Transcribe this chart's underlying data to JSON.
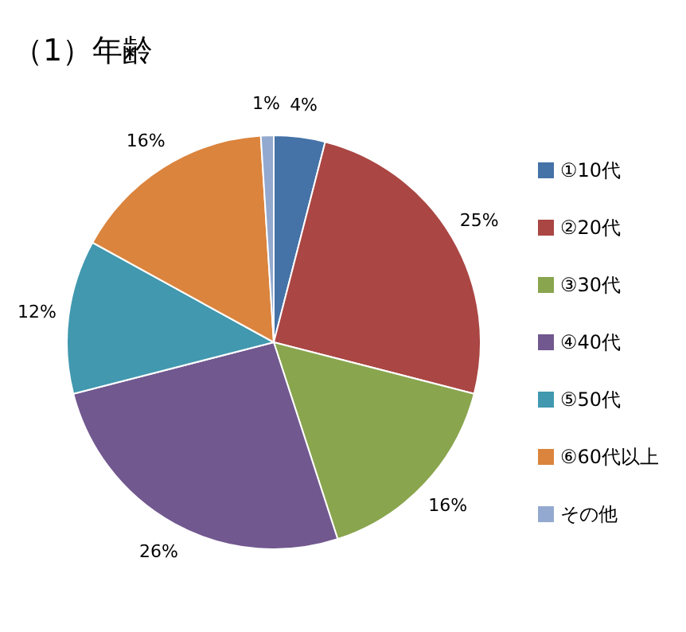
{
  "chart_data": {
    "type": "pie",
    "title": "（1）年齢",
    "categories": [
      "①10代",
      "②20代",
      "③30代",
      "④40代",
      "⑤50代",
      "⑥60代以上",
      "その他"
    ],
    "values": [
      4,
      25,
      16,
      26,
      12,
      16,
      1
    ],
    "colors": [
      "#4572a7",
      "#aa4643",
      "#89a54e",
      "#71588f",
      "#4198af",
      "#db843d",
      "#93a9cf"
    ],
    "value_labels": [
      "4%",
      "25%",
      "16%",
      "26%",
      "12%",
      "16%",
      "1%"
    ],
    "legend": "right"
  }
}
